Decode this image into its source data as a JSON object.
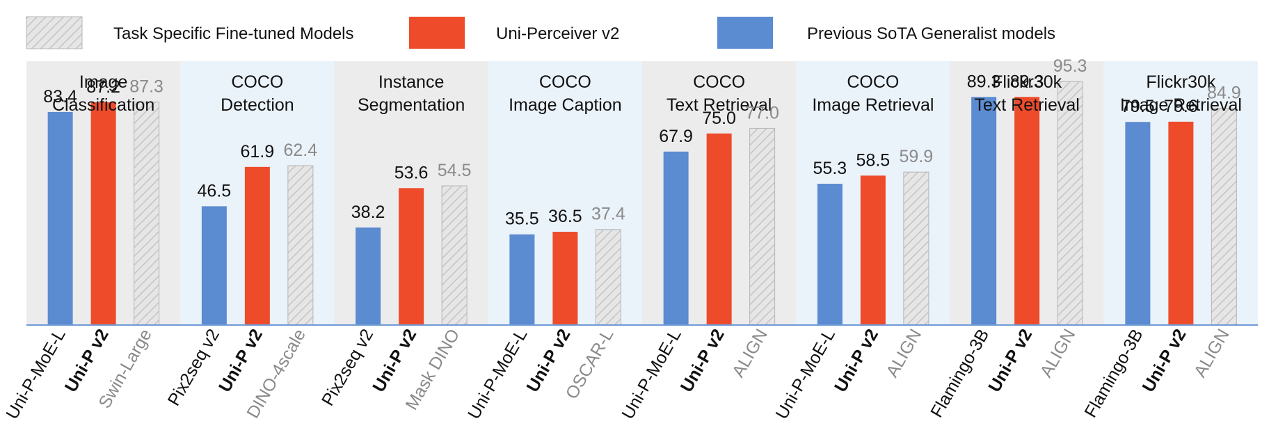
{
  "legend": [
    {
      "label": "Task Specific Fine-tuned Models",
      "style": "hatched",
      "color": "#e6e6e6"
    },
    {
      "label": "Uni-Perceiver v2",
      "style": "solid",
      "color": "#ee4b2b"
    },
    {
      "label": "Previous SoTA Generalist models",
      "style": "solid",
      "color": "#5b8bd0"
    }
  ],
  "colors": {
    "generalist": "#5b8bd0",
    "uni_perceiver": "#ee4b2b",
    "fine_tuned": "#e6e6e6",
    "panel_gray": "#ececec",
    "panel_blue": "#eaf2fa"
  },
  "chart_data": {
    "type": "bar",
    "ylim": [
      0,
      100
    ],
    "series": [
      {
        "name": "Previous SoTA Generalist models",
        "values": [
          83.4,
          46.5,
          38.2,
          35.5,
          67.9,
          55.3,
          89.3,
          79.5
        ]
      },
      {
        "name": "Uni-Perceiver v2",
        "values": [
          87.2,
          61.9,
          53.6,
          36.5,
          75.0,
          58.5,
          89.3,
          79.6
        ]
      },
      {
        "name": "Task Specific Fine-tuned Models",
        "values": [
          87.3,
          62.4,
          54.5,
          37.4,
          77.0,
          59.9,
          95.3,
          84.9
        ]
      }
    ],
    "groups": [
      {
        "title": [
          "Image",
          "Classification"
        ],
        "bars": [
          {
            "label": "Uni-P-MoE-L",
            "value": 83.4,
            "value_text": "83.4",
            "kind": "generalist"
          },
          {
            "label": "Uni-P v2",
            "value": 87.2,
            "value_text": "87.2",
            "kind": "uni"
          },
          {
            "label": "Swin-Large",
            "value": 87.3,
            "value_text": "87.3",
            "kind": "finetuned"
          }
        ]
      },
      {
        "title": [
          "COCO",
          "Detection"
        ],
        "bars": [
          {
            "label": "Pix2seq v2",
            "value": 46.5,
            "value_text": "46.5",
            "kind": "generalist"
          },
          {
            "label": "Uni-P v2",
            "value": 61.9,
            "value_text": "61.9",
            "kind": "uni"
          },
          {
            "label": "DINO-4scale",
            "value": 62.4,
            "value_text": "62.4",
            "kind": "finetuned"
          }
        ]
      },
      {
        "title": [
          "Instance",
          "Segmentation"
        ],
        "bars": [
          {
            "label": "Pix2seq v2",
            "value": 38.2,
            "value_text": "38.2",
            "kind": "generalist"
          },
          {
            "label": "Uni-P v2",
            "value": 53.6,
            "value_text": "53.6",
            "kind": "uni"
          },
          {
            "label": "Mask DINO",
            "value": 54.5,
            "value_text": "54.5",
            "kind": "finetuned"
          }
        ]
      },
      {
        "title": [
          "COCO",
          "Image Caption"
        ],
        "bars": [
          {
            "label": "Uni-P-MoE-L",
            "value": 35.5,
            "value_text": "35.5",
            "kind": "generalist"
          },
          {
            "label": "Uni-P v2",
            "value": 36.5,
            "value_text": "36.5",
            "kind": "uni"
          },
          {
            "label": "OSCAR-L",
            "value": 37.4,
            "value_text": "37.4",
            "kind": "finetuned"
          }
        ]
      },
      {
        "title": [
          "COCO",
          "Text Retrieval"
        ],
        "bars": [
          {
            "label": "Uni-P-MoE-L",
            "value": 67.9,
            "value_text": "67.9",
            "kind": "generalist"
          },
          {
            "label": "Uni-P v2",
            "value": 75.0,
            "value_text": "75.0",
            "kind": "uni"
          },
          {
            "label": "ALIGN",
            "value": 77.0,
            "value_text": "77.0",
            "kind": "finetuned"
          }
        ]
      },
      {
        "title": [
          "COCO",
          "Image Retrieval"
        ],
        "bars": [
          {
            "label": "Uni-P-MoE-L",
            "value": 55.3,
            "value_text": "55.3",
            "kind": "generalist"
          },
          {
            "label": "Uni-P v2",
            "value": 58.5,
            "value_text": "58.5",
            "kind": "uni"
          },
          {
            "label": "ALIGN",
            "value": 59.9,
            "value_text": "59.9",
            "kind": "finetuned"
          }
        ]
      },
      {
        "title": [
          "Flickr30k",
          "Text Retrieval"
        ],
        "bars": [
          {
            "label": "Flamingo-3B",
            "value": 89.3,
            "value_text": "89.3",
            "kind": "generalist"
          },
          {
            "label": "Uni-P v2",
            "value": 89.3,
            "value_text": "89.3",
            "kind": "uni"
          },
          {
            "label": "ALIGN",
            "value": 95.3,
            "value_text": "95.3",
            "kind": "finetuned"
          }
        ]
      },
      {
        "title": [
          "Flickr30k",
          "Image Retrieval"
        ],
        "bars": [
          {
            "label": "Flamingo-3B",
            "value": 79.5,
            "value_text": "79.5",
            "kind": "generalist"
          },
          {
            "label": "Uni-P v2",
            "value": 79.6,
            "value_text": "79.6",
            "kind": "uni"
          },
          {
            "label": "ALIGN",
            "value": 84.9,
            "value_text": "84.9",
            "kind": "finetuned"
          }
        ]
      }
    ]
  }
}
